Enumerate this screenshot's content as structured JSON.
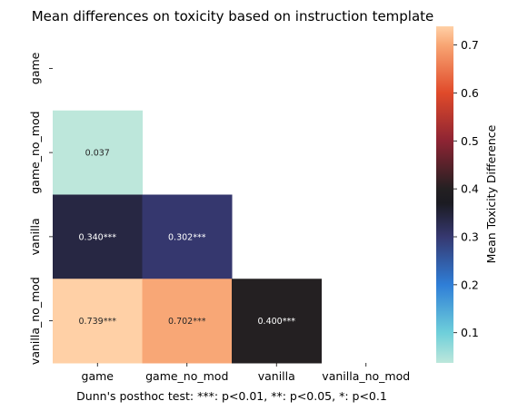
{
  "chart_data": {
    "type": "heatmap",
    "title": "Mean differences on toxicity based on instruction template",
    "xlabel": "Dunn's posthoc test: ***: p<0.01, **: p<0.05, *: p<0.1",
    "row_categories": [
      "game",
      "game_no_mod",
      "vanilla",
      "vanilla_no_mod"
    ],
    "col_categories": [
      "game",
      "game_no_mod",
      "vanilla",
      "vanilla_no_mod"
    ],
    "cells": [
      {
        "row": "game_no_mod",
        "col": "game",
        "value": 0.037,
        "label": "0.037"
      },
      {
        "row": "vanilla",
        "col": "game",
        "value": 0.34,
        "label": "0.340***"
      },
      {
        "row": "vanilla",
        "col": "game_no_mod",
        "value": 0.302,
        "label": "0.302***"
      },
      {
        "row": "vanilla_no_mod",
        "col": "game",
        "value": 0.739,
        "label": "0.739***"
      },
      {
        "row": "vanilla_no_mod",
        "col": "game_no_mod",
        "value": 0.702,
        "label": "0.702***"
      },
      {
        "row": "vanilla_no_mod",
        "col": "vanilla",
        "value": 0.4,
        "label": "0.400***"
      }
    ],
    "mask": "upper triangle and diagonal",
    "colorbar": {
      "label": "Mean Toxicity Difference",
      "range": [
        0.037,
        0.739
      ],
      "ticks": [
        0.1,
        0.2,
        0.3,
        0.4,
        0.5,
        0.6,
        0.7
      ],
      "tick_labels": [
        "0.1",
        "0.2",
        "0.3",
        "0.4",
        "0.5",
        "0.6",
        "0.7"
      ],
      "colormap": "icefire",
      "stops": [
        {
          "value": 0.037,
          "color": "#bde7db"
        },
        {
          "value": 0.1,
          "color": "#6ecfda"
        },
        {
          "value": 0.2,
          "color": "#2f7ed7"
        },
        {
          "value": 0.3,
          "color": "#363870"
        },
        {
          "value": 0.37,
          "color": "#1b1b22"
        },
        {
          "value": 0.4,
          "color": "#242022"
        },
        {
          "value": 0.5,
          "color": "#8d2433"
        },
        {
          "value": 0.6,
          "color": "#e04a2a"
        },
        {
          "value": 0.7,
          "color": "#f8a573"
        },
        {
          "value": 0.739,
          "color": "#ffd0a6"
        }
      ]
    }
  }
}
